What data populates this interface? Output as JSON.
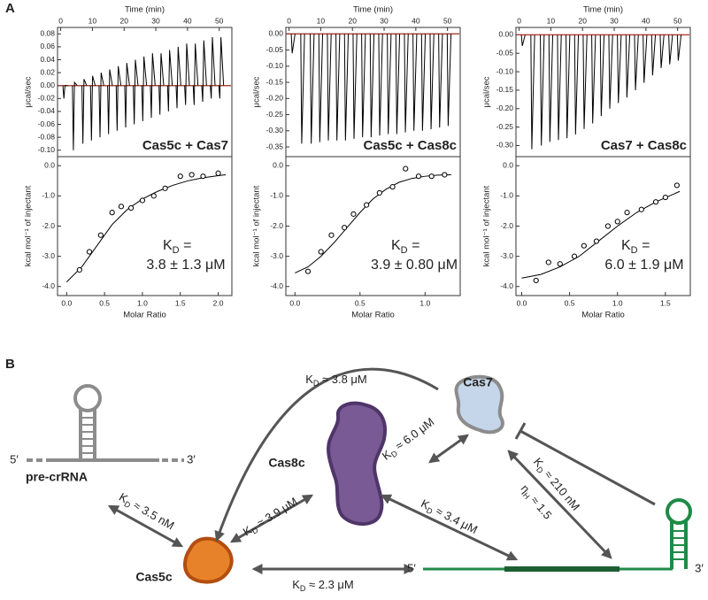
{
  "panel_labels": [
    "A",
    "B"
  ],
  "chart_data": [
    {
      "type": "line",
      "xlabel": "Time (min)",
      "ylabel": "μcal/sec",
      "label": "Cas5c + Cas7",
      "color": "#000000",
      "baseline_color": "#c0392b",
      "xlim": [
        -1,
        54
      ],
      "xticks": [
        0,
        10,
        20,
        30,
        40,
        50
      ],
      "ylim": [
        -0.11,
        0.09
      ],
      "yticks": [
        0.08,
        0.06,
        0.04,
        0.02,
        {
          "value": 0,
          "label": "0.00"
        },
        -0.02,
        -0.04,
        -0.06,
        -0.08,
        {
          "value": -0.1,
          "label": "-0.10"
        }
      ],
      "x": [
        1,
        4,
        7,
        9.7,
        12.4,
        15.1,
        17.8,
        20.5,
        23.2,
        25.9,
        28.6,
        31.3,
        34,
        36.7,
        39.4,
        42.1,
        44.8,
        47.5,
        50.2
      ],
      "values": [
        -0.02,
        -0.1,
        -0.09,
        -0.085,
        -0.08,
        -0.075,
        -0.07,
        -0.065,
        -0.06,
        -0.055,
        -0.05,
        -0.045,
        -0.04,
        -0.035,
        -0.03,
        -0.03,
        -0.025,
        -0.02,
        -0.02
      ],
      "values_up": [
        0,
        0.005,
        0.01,
        0.015,
        0.02,
        0.025,
        0.03,
        0.035,
        0.04,
        0.045,
        0.05,
        0.05,
        0.055,
        0.06,
        0.065,
        0.065,
        0.07,
        0.075,
        0.075
      ]
    },
    {
      "type": "scatter",
      "xlabel": "Molar Ratio",
      "ylabel": "kcal mol⁻¹ of injectant",
      "color": "#000000",
      "xlim": [
        -0.12,
        2.18
      ],
      "xticks": [
        {
          "value": 0,
          "label": "0.0"
        },
        0.5,
        {
          "value": 1,
          "label": "1.0"
        },
        1.5,
        {
          "value": 2,
          "label": "2.0"
        }
      ],
      "ylim": [
        -4.3,
        0.3
      ],
      "yticks": [
        {
          "value": 0,
          "label": "0.0"
        },
        {
          "value": -1,
          "label": "-1.0"
        },
        {
          "value": -2,
          "label": "-2.0"
        },
        {
          "value": -3,
          "label": "-3.0"
        },
        {
          "value": -4,
          "label": "-4.0"
        }
      ],
      "x": [
        0.17,
        0.3,
        0.45,
        0.6,
        0.72,
        0.85,
        1.0,
        1.15,
        1.3,
        1.5,
        1.65,
        1.8,
        2.0
      ],
      "values": [
        -3.45,
        -2.85,
        -2.3,
        -1.55,
        -1.35,
        -1.4,
        -1.15,
        -1.0,
        -0.75,
        -0.35,
        -0.3,
        -0.35,
        -0.25
      ],
      "fit": {
        "x": [
          0,
          0.2,
          0.4,
          0.6,
          0.8,
          1.0,
          1.2,
          1.4,
          1.6,
          1.8,
          2.0,
          2.1
        ],
        "values": [
          -3.85,
          -3.35,
          -2.65,
          -1.95,
          -1.45,
          -1.1,
          -0.85,
          -0.65,
          -0.5,
          -0.4,
          -0.33,
          -0.3
        ]
      },
      "annotation": {
        "symbol": "K",
        "subscript": "D",
        "relation": " =",
        "value": "3.8 ± 1.3 μM"
      }
    },
    {
      "type": "line",
      "xlabel": "Time (min)",
      "ylabel": "μcal/sec",
      "label": "Cas5c + Cas8c",
      "color": "#000000",
      "baseline_color": "#c0392b",
      "xlim": [
        -1,
        54
      ],
      "xticks": [
        0,
        10,
        20,
        30,
        40,
        50
      ],
      "ylim": [
        -0.38,
        0.02
      ],
      "yticks": [
        {
          "value": 0,
          "label": "0.00"
        },
        -0.05,
        {
          "value": -0.1,
          "label": "-0.10"
        },
        -0.15,
        {
          "value": -0.2,
          "label": "-0.20"
        },
        -0.25,
        {
          "value": -0.3,
          "label": "-0.30"
        },
        -0.35
      ],
      "x": [
        1,
        4,
        7,
        9.7,
        12.4,
        15.1,
        17.8,
        20.5,
        23.2,
        25.9,
        28.6,
        31.3,
        34,
        36.7,
        39.4,
        42.1,
        44.8,
        47.5,
        50.2
      ],
      "values": [
        -0.06,
        -0.34,
        -0.34,
        -0.335,
        -0.33,
        -0.33,
        -0.33,
        -0.325,
        -0.32,
        -0.32,
        -0.315,
        -0.31,
        -0.31,
        -0.305,
        -0.3,
        -0.3,
        -0.295,
        -0.29,
        -0.285
      ]
    },
    {
      "type": "scatter",
      "xlabel": "Molar Ratio",
      "ylabel": "kcal mol⁻¹ of injectant",
      "color": "#000000",
      "xlim": [
        -0.07,
        1.27
      ],
      "xticks": [
        {
          "value": 0,
          "label": "0.0"
        },
        0.5,
        {
          "value": 1,
          "label": "1.0"
        }
      ],
      "ylim": [
        -4.3,
        0.3
      ],
      "yticks": [
        {
          "value": 0,
          "label": "0.0"
        },
        {
          "value": -1,
          "label": "-1.0"
        },
        {
          "value": -2,
          "label": "-2.0"
        },
        {
          "value": -3,
          "label": "-3.0"
        },
        {
          "value": -4,
          "label": "-4.0"
        }
      ],
      "x": [
        0.1,
        0.2,
        0.28,
        0.38,
        0.45,
        0.55,
        0.65,
        0.75,
        0.85,
        0.95,
        1.05,
        1.15
      ],
      "values": [
        -3.5,
        -2.85,
        -2.3,
        -2.05,
        -1.6,
        -1.3,
        -0.9,
        -0.7,
        -0.1,
        -0.35,
        -0.35,
        -0.3
      ],
      "fit": {
        "x": [
          0,
          0.1,
          0.2,
          0.3,
          0.4,
          0.5,
          0.6,
          0.7,
          0.8,
          0.9,
          1.0,
          1.1,
          1.2
        ],
        "values": [
          -3.55,
          -3.35,
          -3.0,
          -2.55,
          -2.05,
          -1.55,
          -1.1,
          -0.78,
          -0.55,
          -0.42,
          -0.35,
          -0.31,
          -0.3
        ]
      },
      "annotation": {
        "symbol": "K",
        "subscript": "D",
        "relation": " =",
        "value": "3.9 ± 0.80 μM"
      }
    },
    {
      "type": "line",
      "xlabel": "Time (min)",
      "ylabel": "μcal/sec",
      "label": "Cas7 + Cas8c",
      "color": "#000000",
      "baseline_color": "#c0392b",
      "xlim": [
        -1,
        54
      ],
      "xticks": [
        0,
        10,
        20,
        30,
        40,
        50
      ],
      "ylim": [
        -0.33,
        0.02
      ],
      "yticks": [
        {
          "value": 0,
          "label": "0.00"
        },
        -0.05,
        {
          "value": -0.1,
          "label": "-0.10"
        },
        -0.15,
        {
          "value": -0.2,
          "label": "-0.20"
        },
        -0.25,
        {
          "value": -0.3,
          "label": "-0.30"
        }
      ],
      "x": [
        1,
        4,
        7,
        9.7,
        12.4,
        15.1,
        17.8,
        20.5,
        23.2,
        25.9,
        28.6,
        31.3,
        34,
        36.7,
        39.4,
        42.1,
        44.8,
        47.5,
        50.2
      ],
      "values": [
        -0.03,
        -0.31,
        -0.3,
        -0.29,
        -0.285,
        -0.28,
        -0.27,
        -0.255,
        -0.24,
        -0.22,
        -0.2,
        -0.185,
        -0.17,
        -0.15,
        -0.13,
        -0.11,
        -0.09,
        -0.08,
        -0.07
      ]
    },
    {
      "type": "scatter",
      "xlabel": "Molar Ratio",
      "ylabel": "kcal mol⁻¹ of injectant",
      "color": "#000000",
      "xlim": [
        -0.06,
        1.76
      ],
      "xticks": [
        {
          "value": 0,
          "label": "0.0"
        },
        0.5,
        {
          "value": 1,
          "label": "1.0"
        },
        1.5
      ],
      "ylim": [
        -4.3,
        0.3
      ],
      "yticks": [
        {
          "value": 0,
          "label": "0.0"
        },
        {
          "value": -1,
          "label": "-1.0"
        },
        {
          "value": -2,
          "label": "-2.0"
        },
        {
          "value": -3,
          "label": "-3.0"
        },
        {
          "value": -4,
          "label": "-4.0"
        }
      ],
      "x": [
        0.15,
        0.28,
        0.4,
        0.55,
        0.65,
        0.78,
        0.9,
        1.0,
        1.1,
        1.25,
        1.4,
        1.5,
        1.62
      ],
      "values": [
        -3.8,
        -3.2,
        -3.25,
        -3.0,
        -2.65,
        -2.5,
        -2.0,
        -1.85,
        -1.55,
        -1.45,
        -1.2,
        -1.05,
        -0.65
      ],
      "fit": {
        "x": [
          0,
          0.2,
          0.4,
          0.6,
          0.8,
          1.0,
          1.2,
          1.4,
          1.65
        ],
        "values": [
          -3.72,
          -3.6,
          -3.35,
          -3.0,
          -2.5,
          -2.0,
          -1.55,
          -1.2,
          -0.85
        ]
      },
      "annotation": {
        "symbol": "K",
        "subscript": "D",
        "relation": " =",
        "value": "6.0 ± 1.9 μM"
      }
    }
  ],
  "diagram": {
    "labels": [
      "pre-crRNA",
      "Cas5c",
      "Cas8c",
      "Cas7"
    ],
    "ends": [
      "5′",
      "3′",
      "5′",
      "3′"
    ],
    "affinities": [
      {
        "symbol": "K",
        "subscript": "D",
        "text": " ≈ 3.8 μM"
      },
      {
        "symbol": "K",
        "subscript": "D",
        "text": " ≈ 6.0 μM"
      },
      {
        "symbol": "K",
        "subscript": "D",
        "text": " ≈ 3.5 nM"
      },
      {
        "symbol": "K",
        "subscript": "D",
        "text": " ≈ 3.9 μM"
      },
      {
        "symbol": "K",
        "subscript": "D",
        "text": " ≈ 3.4 μM"
      },
      {
        "symbol": "K",
        "subscript": "D",
        "text": " ≈ 210 nM"
      },
      {
        "symbol": "η",
        "subscript": "H",
        "text": " ≈ 1.5"
      },
      {
        "symbol": "K",
        "subscript": "D",
        "text": " ≈ 2.3 μM"
      }
    ]
  }
}
